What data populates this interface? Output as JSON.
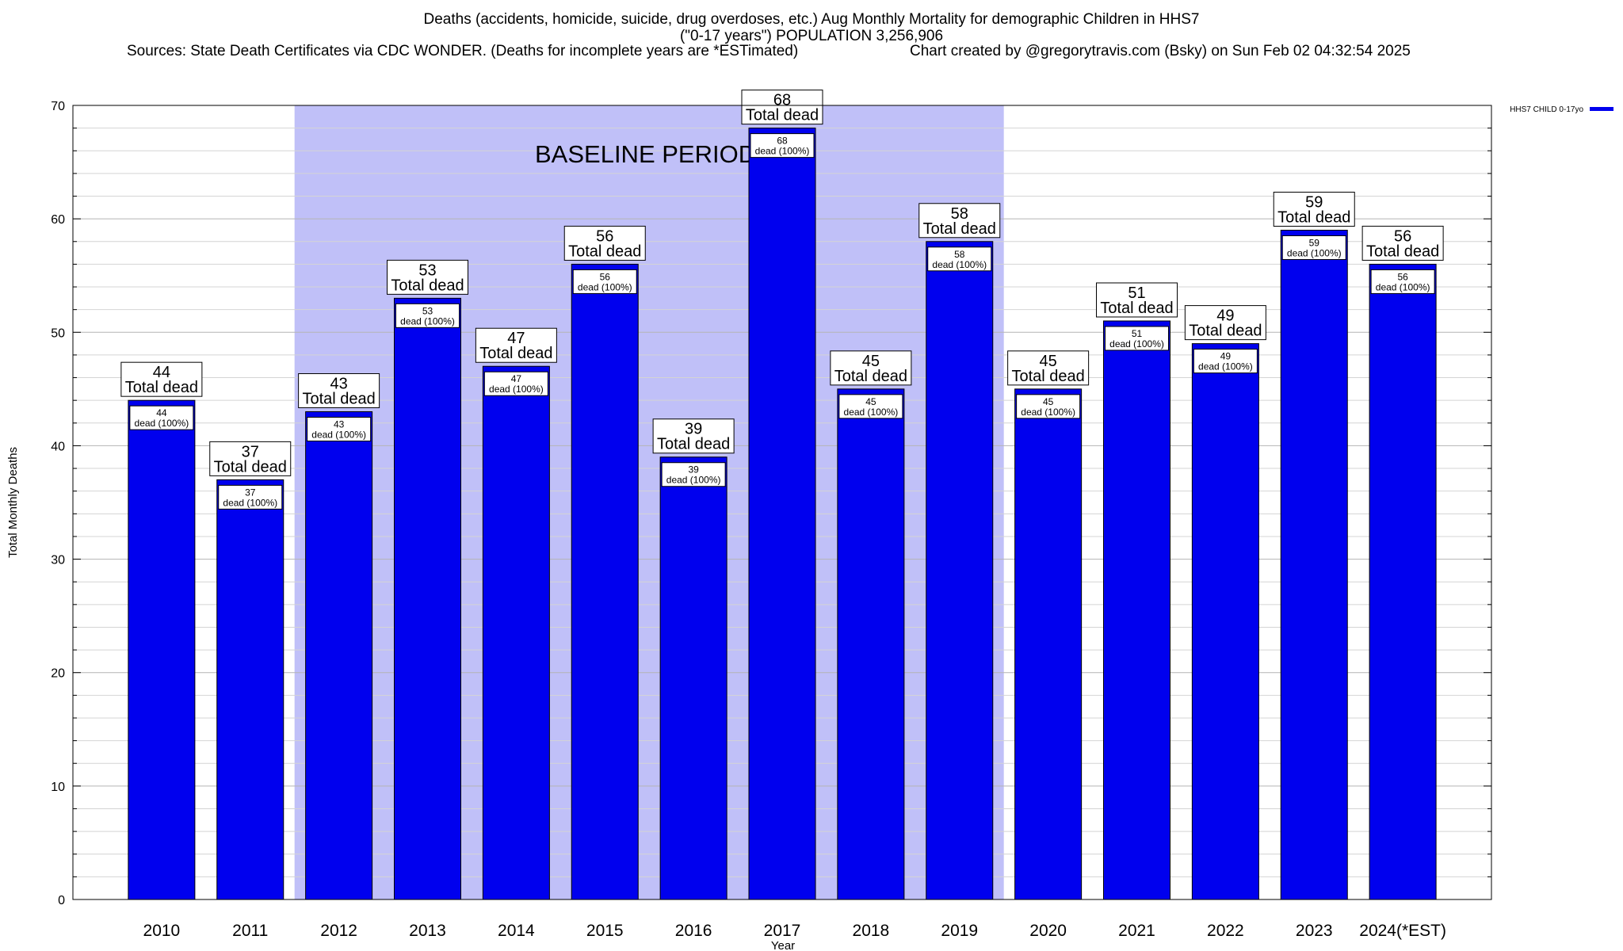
{
  "title_line1": "Deaths (accidents, homicide, suicide, drug overdoses, etc.) Aug Monthly Mortality for demographic Children in HHS7",
  "title_line2": "(\"0-17 years\") POPULATION 3,256,906",
  "sources": "Sources: State Death Certificates via CDC WONDER. (Deaths for incomplete years are *ESTimated)",
  "credit": "Chart created by @gregorytravis.com (Bsky) on Sun Feb 02 04:32:54 2025",
  "chart_data": {
    "type": "bar",
    "categories": [
      "2010",
      "2011",
      "2012",
      "2013",
      "2014",
      "2015",
      "2016",
      "2017",
      "2018",
      "2019",
      "2020",
      "2021",
      "2022",
      "2023",
      "2024(*EST)"
    ],
    "series": [
      {
        "name": "HHS7 CHILD 0-17yo",
        "values": [
          44,
          37,
          43,
          53,
          47,
          56,
          39,
          68,
          45,
          58,
          45,
          51,
          49,
          59,
          56
        ]
      }
    ],
    "value_labels_top": "Total dead",
    "value_labels_inner": "dead (100%)",
    "xlabel": "Year",
    "ylabel": "Total Monthly Deaths",
    "ylim": [
      0,
      70
    ],
    "yticks": [
      0,
      10,
      20,
      30,
      40,
      50,
      60,
      70
    ],
    "grid": true,
    "legend_position": "top-right",
    "baseline_period": {
      "label": "BASELINE PERIOD",
      "from": "2012",
      "to": "2019"
    },
    "colors": {
      "bar": "#0000ee",
      "baseline_shade": "#c0c0f8",
      "grid": "#c8c8c8"
    }
  }
}
